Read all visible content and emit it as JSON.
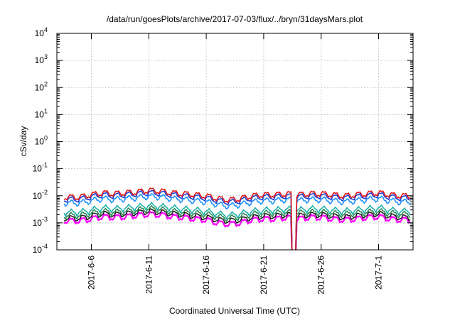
{
  "chart_data": {
    "type": "line",
    "title": "/data/run/goesPlots/archive/2017-07-03/flux/../bryn/31daysMars.plot",
    "xlabel": "Coordinated Universal Time (UTC)",
    "ylabel": "cSv/day",
    "yscale": "log",
    "ylim": [
      0.0001,
      10000
    ],
    "xlim": [
      "2017-06-03",
      "2017-07-04"
    ],
    "grid": true,
    "legend": "none",
    "y_ticks": [
      {
        "base": "10",
        "exp": "-4"
      },
      {
        "base": "10",
        "exp": "-3"
      },
      {
        "base": "10",
        "exp": "-2"
      },
      {
        "base": "10",
        "exp": "-1"
      },
      {
        "base": "10",
        "exp": "0"
      },
      {
        "base": "10",
        "exp": "1"
      },
      {
        "base": "10",
        "exp": "2"
      },
      {
        "base": "10",
        "exp": "3"
      },
      {
        "base": "10",
        "exp": "4"
      }
    ],
    "x_ticks": [
      {
        "label": "2017-6-6",
        "date": "2017-06-06"
      },
      {
        "label": "2017-6-11",
        "date": "2017-06-11"
      },
      {
        "label": "2017-6-16",
        "date": "2017-06-16"
      },
      {
        "label": "2017-6-21",
        "date": "2017-06-21"
      },
      {
        "label": "2017-6-26",
        "date": "2017-06-26"
      },
      {
        "label": "2017-7-1",
        "date": "2017-07-01"
      }
    ],
    "gap": {
      "start": "2017-06-23T12:00",
      "end": "2017-06-23T20:00"
    },
    "x": [
      "2017-06-04",
      "2017-06-05",
      "2017-06-06",
      "2017-06-07",
      "2017-06-08",
      "2017-06-09",
      "2017-06-10",
      "2017-06-11",
      "2017-06-12",
      "2017-06-13",
      "2017-06-14",
      "2017-06-15",
      "2017-06-16",
      "2017-06-17",
      "2017-06-18",
      "2017-06-19",
      "2017-06-20",
      "2017-06-21",
      "2017-06-22",
      "2017-06-23",
      "2017-06-24",
      "2017-06-25",
      "2017-06-26",
      "2017-06-27",
      "2017-06-28",
      "2017-06-29",
      "2017-06-30",
      "2017-07-01",
      "2017-07-02",
      "2017-07-03"
    ],
    "series": [
      {
        "color": "#e41a1c",
        "values": [
          0.009,
          0.009,
          0.011,
          0.013,
          0.012,
          0.013,
          0.014,
          0.016,
          0.015,
          0.013,
          0.012,
          0.011,
          0.01,
          0.008,
          0.007,
          0.008,
          0.01,
          0.011,
          0.011,
          0.012,
          0.011,
          0.012,
          0.012,
          0.011,
          0.01,
          0.011,
          0.012,
          0.013,
          0.011,
          0.01
        ]
      },
      {
        "color": "#1f3fd6",
        "values": [
          0.0075,
          0.0075,
          0.0092,
          0.011,
          0.01,
          0.011,
          0.012,
          0.013,
          0.0125,
          0.011,
          0.01,
          0.0092,
          0.0083,
          0.0067,
          0.0058,
          0.0067,
          0.0083,
          0.0092,
          0.0092,
          0.01,
          0.0092,
          0.01,
          0.01,
          0.0092,
          0.0083,
          0.0092,
          0.01,
          0.011,
          0.0092,
          0.0083
        ]
      },
      {
        "color": "#1e90ff",
        "values": [
          0.0055,
          0.0055,
          0.0066,
          0.0079,
          0.0073,
          0.0079,
          0.0085,
          0.0097,
          0.0091,
          0.0079,
          0.0073,
          0.0066,
          0.006,
          0.0048,
          0.0042,
          0.0048,
          0.006,
          0.0066,
          0.0066,
          0.0073,
          0.0066,
          0.0073,
          0.0073,
          0.0066,
          0.006,
          0.0066,
          0.0073,
          0.0079,
          0.0066,
          0.006
        ]
      },
      {
        "color": "#20b2aa",
        "values": [
          0.0025,
          0.0025,
          0.003,
          0.0036,
          0.0033,
          0.0036,
          0.0039,
          0.0044,
          0.0041,
          0.0036,
          0.0033,
          0.003,
          0.0027,
          0.0022,
          0.0019,
          0.0022,
          0.0027,
          0.003,
          0.003,
          0.0033,
          0.003,
          0.0033,
          0.0033,
          0.003,
          0.0027,
          0.003,
          0.0033,
          0.0036,
          0.003,
          0.0027
        ]
      },
      {
        "color": "#2e8b57",
        "values": [
          0.0019,
          0.0019,
          0.0023,
          0.0027,
          0.0025,
          0.0027,
          0.003,
          0.0034,
          0.0032,
          0.0027,
          0.0025,
          0.0023,
          0.0021,
          0.0017,
          0.0015,
          0.0017,
          0.0021,
          0.0023,
          0.0023,
          0.0025,
          0.0023,
          0.0025,
          0.0025,
          0.0023,
          0.0021,
          0.0023,
          0.0025,
          0.0027,
          0.0023,
          0.0021
        ]
      },
      {
        "color": "#222222",
        "values": [
          0.0015,
          0.0015,
          0.0018,
          0.0022,
          0.002,
          0.0022,
          0.0024,
          0.0027,
          0.0025,
          0.0022,
          0.002,
          0.0018,
          0.0016,
          0.0013,
          0.0012,
          0.0013,
          0.0016,
          0.0018,
          0.0018,
          0.002,
          0.0018,
          0.002,
          0.002,
          0.0018,
          0.0016,
          0.0018,
          0.002,
          0.0022,
          0.0018,
          0.0016
        ]
      },
      {
        "color": "#ff00ff",
        "values": [
          0.0012,
          0.0012,
          0.0014,
          0.0017,
          0.0016,
          0.0017,
          0.0019,
          0.0021,
          0.002,
          0.0017,
          0.0016,
          0.0014,
          0.0013,
          0.001,
          0.0009,
          0.001,
          0.0013,
          0.0014,
          0.0014,
          0.0016,
          0.0014,
          0.0016,
          0.0016,
          0.0014,
          0.0013,
          0.0014,
          0.0016,
          0.0017,
          0.0014,
          0.0013
        ]
      }
    ]
  }
}
